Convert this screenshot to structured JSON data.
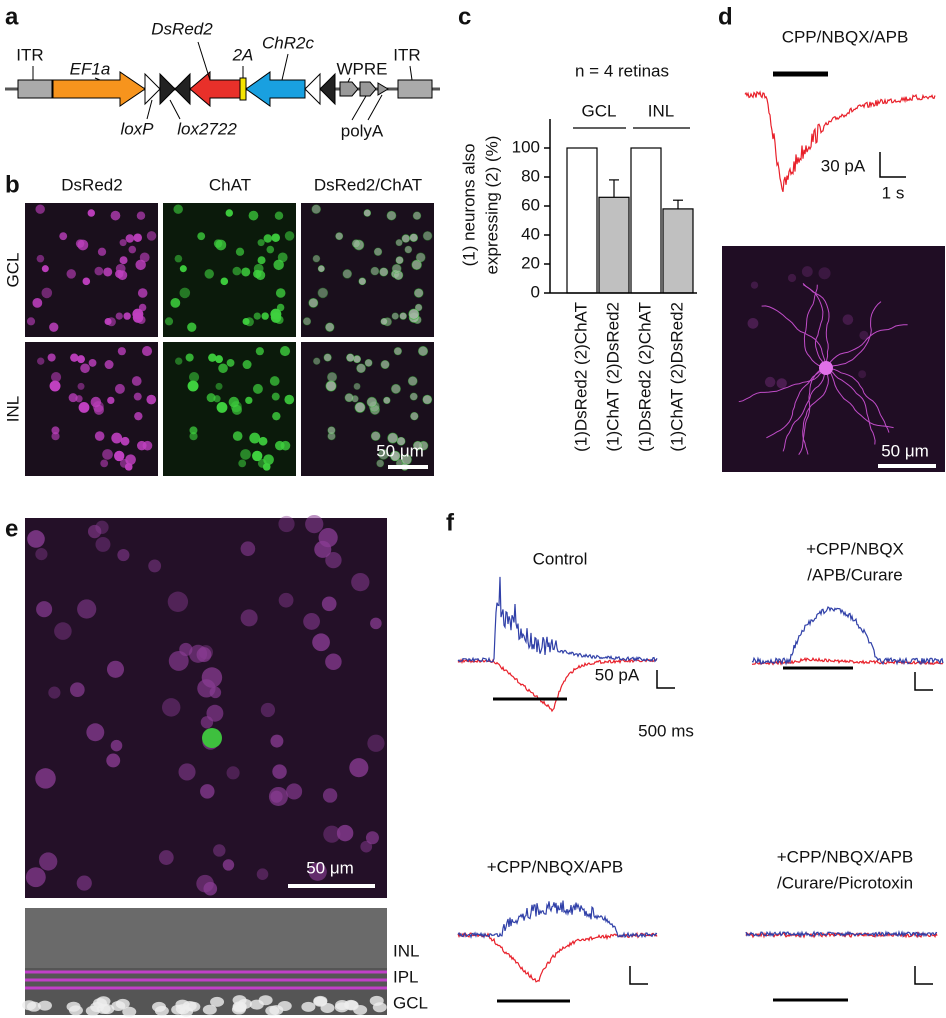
{
  "panel_labels": [
    "a",
    "b",
    "c",
    "d",
    "e",
    "f"
  ],
  "a": {
    "labels": {
      "itr_left": "ITR",
      "ef1a": "EF1a",
      "dsred2": "DsRed2",
      "t2a": "2A",
      "chr2c": "ChR2c",
      "wpre": "WPRE",
      "itr_right": "ITR",
      "loxp": "loxP",
      "lox2722": "lox2722",
      "polya": "polyA"
    }
  },
  "b": {
    "columns": [
      "DsRed2",
      "ChAT",
      "DsRed2/ChAT"
    ],
    "rows": [
      "GCL",
      "INL"
    ],
    "scale_bar": "50 μm"
  },
  "chart_data": {
    "type": "bar",
    "title": "n = 4 retinas",
    "y_label": [
      "(1) neurons also",
      "expressing (2) (%)"
    ],
    "groups": [
      "GCL",
      "INL"
    ],
    "categories": [
      "(1)DsRed2 (2)ChAT",
      "(1)ChAT (2)DsRed2",
      "(1)DsRed2 (2)ChAT",
      "(1)ChAT (2)DsRed2"
    ],
    "values": [
      100,
      66,
      100,
      58
    ],
    "errors": [
      null,
      12,
      null,
      6
    ],
    "colors": [
      "#ffffff",
      "#c0c0c0",
      "#ffffff",
      "#c0c0c0"
    ],
    "ylim": [
      0,
      120
    ],
    "yticks": [
      0,
      20,
      40,
      60,
      80,
      100
    ]
  },
  "d": {
    "condition": "CPP/NBQX/APB",
    "scale_current": "30 pA",
    "scale_time": "1 s",
    "scale_bar": "50 μm"
  },
  "e": {
    "scale_bar": "50 μm",
    "layers": [
      "INL",
      "IPL",
      "GCL"
    ]
  },
  "f": {
    "conditions": [
      [
        "Control"
      ],
      [
        "+CPP/NBQX",
        "/APB/Curare"
      ],
      [
        "+CPP/NBQX/APB"
      ],
      [
        "+CPP/NBQX/APB",
        "/Curare/Picrotoxin"
      ]
    ],
    "scale_current": "50 pA",
    "scale_time": "500 ms"
  }
}
